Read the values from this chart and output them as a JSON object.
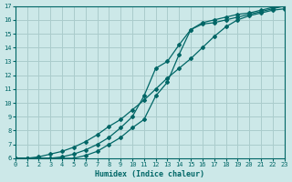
{
  "xlabel": "Humidex (Indice chaleur)",
  "ylabel": "",
  "bg_color": "#cce8e8",
  "grid_color": "#aacccc",
  "line_color": "#006666",
  "xlim": [
    0,
    23
  ],
  "ylim": [
    6,
    17
  ],
  "xticks": [
    0,
    1,
    2,
    3,
    4,
    5,
    6,
    7,
    8,
    9,
    10,
    11,
    12,
    13,
    14,
    15,
    16,
    17,
    18,
    19,
    20,
    21,
    22,
    23
  ],
  "yticks": [
    6,
    7,
    8,
    9,
    10,
    11,
    12,
    13,
    14,
    15,
    16,
    17
  ],
  "line1_x": [
    0,
    1,
    2,
    3,
    4,
    5,
    6,
    7,
    8,
    9,
    10,
    11,
    12,
    13,
    14,
    15,
    16,
    17,
    18,
    19,
    20,
    21,
    22,
    23
  ],
  "line1_y": [
    6,
    6,
    6.1,
    6.3,
    6.5,
    6.8,
    7.2,
    7.7,
    8.3,
    8.8,
    9.5,
    10.2,
    11.0,
    11.8,
    12.5,
    13.2,
    14.0,
    14.8,
    15.5,
    16.0,
    16.3,
    16.5,
    16.7,
    16.8
  ],
  "line2_x": [
    0,
    1,
    2,
    3,
    4,
    5,
    6,
    7,
    8,
    9,
    10,
    11,
    12,
    13,
    14,
    15,
    16,
    17,
    18,
    19,
    20,
    21,
    22,
    23
  ],
  "line2_y": [
    6,
    6,
    6,
    6,
    6,
    6,
    6.2,
    6.5,
    7.0,
    7.5,
    8.2,
    8.8,
    10.5,
    11.5,
    13.5,
    15.3,
    15.7,
    15.8,
    16.0,
    16.2,
    16.4,
    16.6,
    16.8,
    17.0
  ],
  "line3_x": [
    0,
    1,
    2,
    3,
    4,
    5,
    6,
    7,
    8,
    9,
    10,
    11,
    12,
    13,
    14,
    15,
    16,
    17,
    18,
    19,
    20,
    21,
    22,
    23
  ],
  "line3_y": [
    6,
    6,
    6,
    6,
    6.1,
    6.3,
    6.6,
    7.0,
    7.5,
    8.2,
    9.0,
    10.5,
    12.5,
    13.0,
    14.2,
    15.3,
    15.8,
    16.0,
    16.2,
    16.4,
    16.5,
    16.7,
    16.9,
    17.0
  ]
}
